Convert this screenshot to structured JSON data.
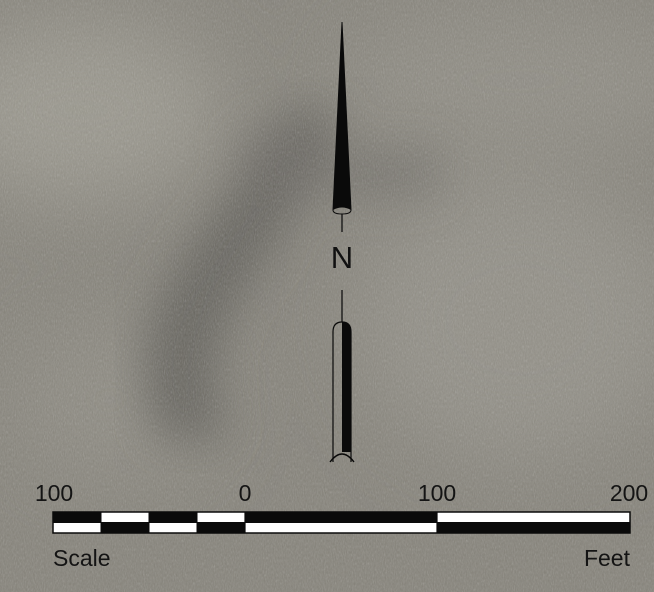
{
  "map": {
    "north_arrow": {
      "label": "N"
    },
    "scale_bar": {
      "ticks": [
        "100",
        "0",
        "100",
        "200"
      ],
      "left_label": "Scale",
      "right_label": "Feet"
    }
  }
}
